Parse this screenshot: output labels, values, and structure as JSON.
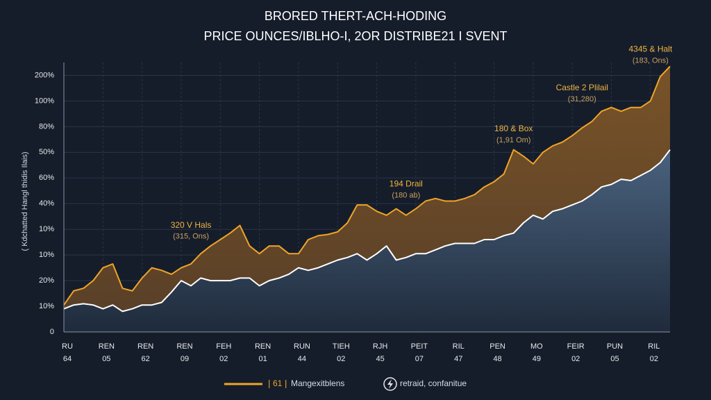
{
  "chart_data": {
    "type": "area",
    "title": "BRORED THERT-ACH-HODING",
    "subtitle": "PRICE OUNCES/IBLHO-I, 2OR DISTRIBE21 I SVENT",
    "y_label": "( Kdchatted Hangl thidis Ilais)",
    "legend_badge": "61",
    "x": [
      0,
      1,
      2,
      3,
      4,
      5,
      6,
      7,
      8,
      9,
      10,
      11,
      12,
      13,
      14,
      15,
      16,
      17,
      18,
      19,
      20,
      21,
      22,
      23,
      24,
      25,
      26,
      27,
      28,
      29,
      30,
      31,
      32,
      33,
      34,
      35,
      36,
      37,
      38,
      39,
      40,
      41,
      42,
      43,
      44,
      45,
      46,
      47,
      48,
      49,
      50,
      51,
      52,
      53,
      54,
      55,
      56,
      57,
      58,
      59,
      60,
      61,
      62
    ],
    "xlim": [
      0,
      62
    ],
    "xticks": [
      {
        "value": 0,
        "label": "RU",
        "sublabel": "64"
      },
      {
        "value": 4,
        "label": "REN",
        "sublabel": "05"
      },
      {
        "value": 8,
        "label": "REN",
        "sublabel": "62"
      },
      {
        "value": 12,
        "label": "REN",
        "sublabel": "09"
      },
      {
        "value": 16,
        "label": "FEH",
        "sublabel": "02"
      },
      {
        "value": 20,
        "label": "REN",
        "sublabel": "01"
      },
      {
        "value": 24,
        "label": "RUN",
        "sublabel": "44"
      },
      {
        "value": 28,
        "label": "TIEH",
        "sublabel": "02"
      },
      {
        "value": 32,
        "label": "RJH",
        "sublabel": "45"
      },
      {
        "value": 36,
        "label": "PEIT",
        "sublabel": "07"
      },
      {
        "value": 40,
        "label": "RIL",
        "sublabel": "47"
      },
      {
        "value": 44,
        "label": "PEN",
        "sublabel": "48"
      },
      {
        "value": 48,
        "label": "MO",
        "sublabel": "49"
      },
      {
        "value": 52,
        "label": "FEIR",
        "sublabel": "02"
      },
      {
        "value": 56,
        "label": "PUN",
        "sublabel": "05"
      },
      {
        "value": 60,
        "label": "RIL",
        "sublabel": "02"
      }
    ],
    "ylim": [
      0,
      210
    ],
    "yticks": [
      0,
      {
        "value": 20,
        "label": "10%"
      },
      {
        "value": 40,
        "label": "20%"
      },
      {
        "value": 60,
        "label": "10%"
      },
      {
        "value": 80,
        "label": "10%"
      },
      {
        "value": 100,
        "label": "40%"
      },
      {
        "value": 120,
        "label": "60%"
      },
      {
        "value": 140,
        "label": "50%"
      },
      {
        "value": 160,
        "label": "80%"
      },
      {
        "value": 180,
        "label": "100%"
      },
      {
        "value": 200,
        "label": "200%"
      }
    ],
    "grid": true,
    "series": [
      {
        "name": "Mangexitblens",
        "color": "#f0a428",
        "fill": "#7a5428",
        "values": [
          21,
          32,
          34,
          40,
          50,
          53,
          34,
          32,
          42,
          50,
          48,
          45,
          50,
          53,
          61,
          67,
          72,
          77,
          83,
          67,
          61,
          67,
          67,
          61,
          61,
          72,
          75,
          76,
          78,
          85,
          99,
          99,
          94,
          91,
          96,
          91,
          96,
          102,
          104,
          102,
          102,
          104,
          107,
          113,
          117,
          123,
          142,
          137,
          131,
          140,
          145,
          148,
          153,
          159,
          164,
          172,
          175,
          172,
          175,
          175,
          180,
          199,
          207
        ]
      },
      {
        "name": "retraid, confanitue",
        "color": "#ffffff",
        "fill": "#3b526c",
        "values": [
          18,
          21,
          22,
          21,
          18,
          21,
          16,
          18,
          21,
          21,
          23,
          31,
          40,
          36,
          42,
          40,
          40,
          40,
          42,
          42,
          36,
          40,
          42,
          45,
          50,
          48,
          50,
          53,
          56,
          58,
          61,
          56,
          61,
          67,
          56,
          58,
          61,
          61,
          64,
          67,
          69,
          69,
          69,
          72,
          72,
          75,
          77,
          85,
          91,
          88,
          94,
          96,
          99,
          102,
          107,
          113,
          115,
          119,
          118,
          122,
          126,
          132,
          142
        ]
      }
    ],
    "annotations": [
      {
        "label": "320 V Hals",
        "sublabel": "(315, Ons)",
        "x": 13,
        "y": 83
      },
      {
        "label": "194 Drail",
        "sublabel": "(180 ab)",
        "x": 35,
        "y": 115
      },
      {
        "label": "180 & Box",
        "sublabel": "(1,91 Om)",
        "x": 46,
        "y": 158
      },
      {
        "label": "Castle 2 Plilail",
        "sublabel": "(31,280)",
        "x": 53,
        "y": 190
      },
      {
        "label": "4345 & Halt",
        "sublabel": "(183, Ons)",
        "x": 60,
        "y": 220
      }
    ]
  }
}
